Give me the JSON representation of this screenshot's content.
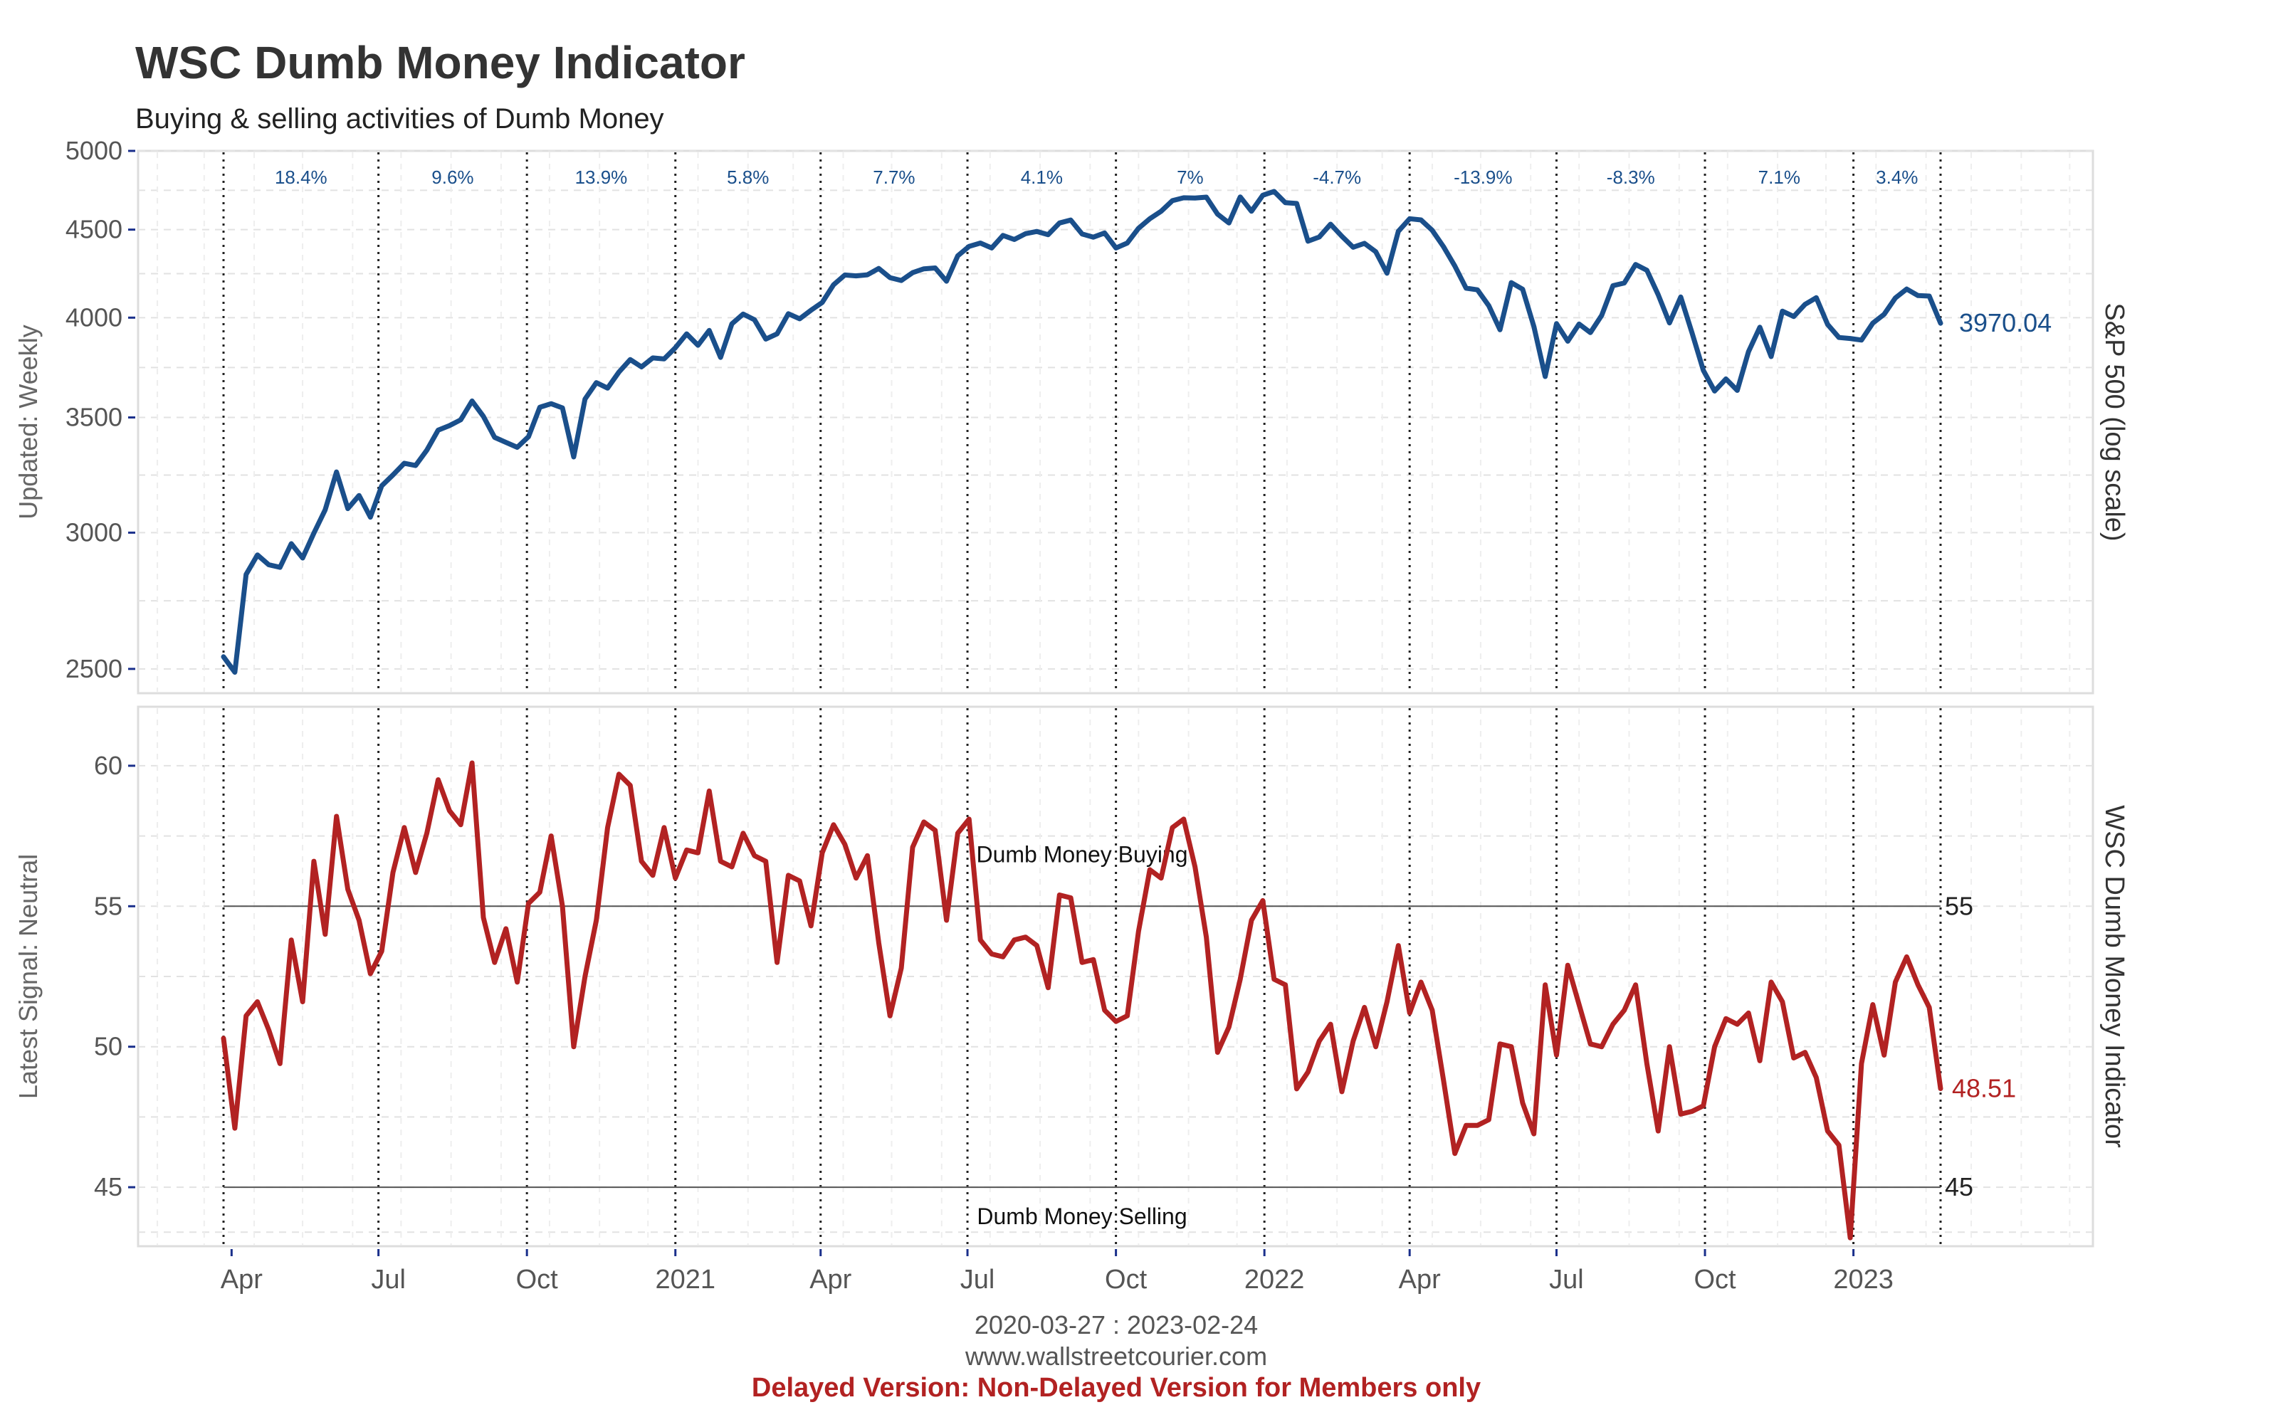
{
  "header": {
    "title": "WSC Dumb Money Indicator",
    "subtitle": "Buying & selling activities of Dumb Money"
  },
  "footer": {
    "date_range": "2020-03-27 : 2023-02-24",
    "website": "www.wallstreetcourier.com",
    "delayed_notice": "Delayed Version: Non-Delayed Version for Members only"
  },
  "colors": {
    "sp500_line": "#1a4f8b",
    "indicator_line": "#b22222",
    "reference_line": "#555555"
  },
  "chart_data": [
    {
      "type": "line",
      "panel": "top",
      "ylabel_left": "Updated: Weekly",
      "ylabel_right": "S&P 500 (log scale)",
      "log_scale": true,
      "ylim": [
        2420,
        5000
      ],
      "yticks": [
        5000,
        4500,
        4000,
        3500,
        3000,
        2500
      ],
      "grid": true,
      "last_value_label": "3970.04",
      "segment_changes": [
        "18.4%",
        "9.6%",
        "13.9%",
        "5.8%",
        "7.7%",
        "4.1%",
        "7%",
        "-4.7%",
        "-13.9%",
        "-8.3%",
        "7.1%",
        "3.4%"
      ],
      "series": [
        {
          "name": "S&P 500",
          "values": [
            2541,
            2489,
            2837,
            2912,
            2874,
            2864,
            2956,
            2900,
            2998,
            3093,
            3254,
            3098,
            3153,
            3063,
            3194,
            3241,
            3292,
            3282,
            3350,
            3441,
            3462,
            3489,
            3578,
            3505,
            3408,
            3385,
            3363,
            3411,
            3548,
            3565,
            3545,
            3320,
            3587,
            3667,
            3640,
            3719,
            3782,
            3745,
            3790,
            3785,
            3842,
            3914,
            3855,
            3932,
            3793,
            3967,
            4019,
            3989,
            3887,
            3914,
            4021,
            3994,
            4040,
            4082,
            4180,
            4235,
            4230,
            4236,
            4272,
            4220,
            4204,
            4248,
            4270,
            4275,
            4200,
            4345,
            4400,
            4420,
            4391,
            4465,
            4441,
            4476,
            4489,
            4470,
            4540,
            4558,
            4474,
            4455,
            4480,
            4391,
            4420,
            4508,
            4566,
            4612,
            4678,
            4696,
            4694,
            4700,
            4594,
            4540,
            4701,
            4612,
            4712,
            4736,
            4665,
            4660,
            4431,
            4456,
            4533,
            4460,
            4395,
            4418,
            4369,
            4245,
            4490,
            4566,
            4559,
            4496,
            4398,
            4286,
            4161,
            4152,
            4065,
            3936,
            4192,
            4155,
            3953,
            3697,
            3968,
            3876,
            3966,
            3921,
            4012,
            4175,
            4190,
            4295,
            4262,
            4125,
            3972,
            4112,
            3919,
            3727,
            3626,
            3685,
            3629,
            3822,
            3949,
            3797,
            4035,
            4006,
            4072,
            4108,
            3964,
            3895,
            3890,
            3882,
            3971,
            4018,
            4107,
            4156,
            4120,
            4117,
            3970
          ]
        }
      ]
    },
    {
      "type": "line",
      "panel": "bottom",
      "ylabel_left": "Latest Signal: Neutral",
      "ylabel_right": "WSC Dumb Money Indicator",
      "ylim": [
        42.9,
        62.1
      ],
      "yticks": [
        60,
        55,
        50,
        45
      ],
      "grid": true,
      "x_start": "2020-03-27",
      "x_end": "2023-02-24",
      "x_tick_labels": [
        "Apr",
        "Jul",
        "Oct",
        "2021",
        "Apr",
        "Jul",
        "Oct",
        "2022",
        "Apr",
        "Jul",
        "Oct",
        "2023"
      ],
      "x_tick_dates": [
        "2020-04-01",
        "2020-07-01",
        "2020-10-01",
        "2021-01-01",
        "2021-04-01",
        "2021-07-01",
        "2021-10-01",
        "2022-01-01",
        "2022-04-01",
        "2022-07-01",
        "2022-10-01",
        "2023-01-01"
      ],
      "reference_lines": [
        {
          "value": 55,
          "label": "55",
          "annotation": "Dumb Money Buying"
        },
        {
          "value": 45,
          "label": "45",
          "annotation": "Dumb Money Selling"
        }
      ],
      "last_value_label": "48.51",
      "series": [
        {
          "name": "WSC Dumb Money Indicator",
          "values": [
            50.3,
            47.1,
            51.1,
            51.6,
            50.6,
            49.4,
            53.8,
            51.6,
            56.6,
            54.0,
            58.2,
            55.6,
            54.5,
            52.6,
            53.4,
            56.2,
            57.8,
            56.2,
            57.6,
            59.5,
            58.4,
            57.9,
            60.1,
            54.6,
            53.0,
            54.2,
            52.3,
            55.1,
            55.5,
            57.5,
            55.0,
            50.0,
            52.5,
            54.5,
            57.8,
            59.7,
            59.3,
            56.6,
            56.1,
            57.8,
            56.0,
            57.0,
            56.9,
            59.1,
            56.6,
            56.4,
            57.6,
            56.8,
            56.6,
            53.0,
            56.1,
            55.9,
            54.3,
            56.9,
            57.9,
            57.2,
            56.0,
            56.8,
            53.7,
            51.1,
            52.8,
            57.1,
            58.0,
            57.7,
            54.5,
            57.6,
            58.1,
            53.8,
            53.3,
            53.2,
            53.8,
            53.9,
            53.6,
            52.1,
            55.4,
            55.3,
            53.0,
            53.1,
            51.3,
            50.9,
            51.1,
            54.1,
            56.3,
            56.0,
            57.8,
            58.1,
            56.4,
            53.9,
            49.8,
            50.7,
            52.4,
            54.5,
            55.2,
            52.4,
            52.2,
            48.5,
            49.1,
            50.2,
            50.8,
            48.4,
            50.2,
            51.4,
            50.0,
            51.6,
            53.6,
            51.2,
            52.3,
            51.3,
            48.8,
            46.2,
            47.2,
            47.2,
            47.4,
            50.1,
            50.0,
            48.0,
            46.9,
            52.2,
            49.7,
            52.9,
            51.5,
            50.1,
            50.0,
            50.8,
            51.3,
            52.2,
            49.4,
            47.0,
            50.0,
            47.6,
            47.7,
            47.9,
            50.0,
            51.0,
            50.8,
            51.2,
            49.5,
            52.3,
            51.6,
            49.6,
            49.8,
            48.9,
            47.0,
            46.5,
            43.2,
            49.4,
            51.5,
            49.7,
            52.3,
            53.2,
            52.2,
            51.4,
            48.51
          ]
        }
      ]
    }
  ]
}
